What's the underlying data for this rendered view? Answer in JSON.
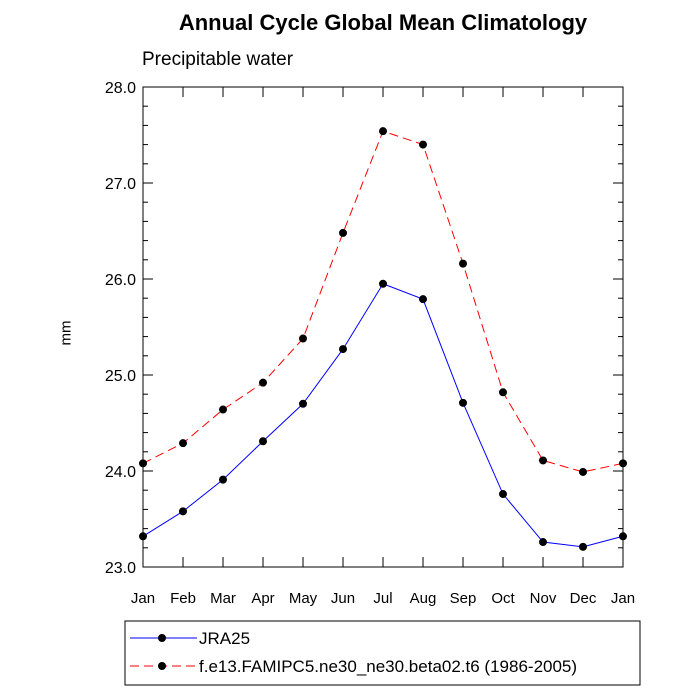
{
  "chart_data": {
    "type": "line",
    "title": "Annual Cycle Global Mean Climatology",
    "subtitle": "Precipitable water",
    "xlabel": "",
    "ylabel": "mm",
    "categories": [
      "Jan",
      "Feb",
      "Mar",
      "Apr",
      "May",
      "Jun",
      "Jul",
      "Aug",
      "Sep",
      "Oct",
      "Nov",
      "Dec",
      "Jan"
    ],
    "ylim": [
      23.0,
      28.0
    ],
    "yticks": [
      "23.0",
      "24.0",
      "25.0",
      "26.0",
      "27.0",
      "28.0"
    ],
    "grid": false,
    "legend": "bottom",
    "series": [
      {
        "name": "JRA25",
        "color": "#0000ff",
        "dash": "solid",
        "values": [
          23.32,
          23.58,
          23.91,
          24.31,
          24.7,
          25.27,
          25.95,
          25.79,
          24.71,
          23.76,
          23.26,
          23.21,
          23.32
        ]
      },
      {
        "name": "f.e13.FAMIPC5.ne30_ne30.beta02.t6 (1986-2005)",
        "color": "#ff0000",
        "dash": "dashed",
        "values": [
          24.08,
          24.29,
          24.64,
          24.92,
          25.38,
          26.48,
          27.54,
          27.4,
          26.16,
          24.82,
          24.11,
          23.99,
          24.08
        ]
      }
    ]
  }
}
